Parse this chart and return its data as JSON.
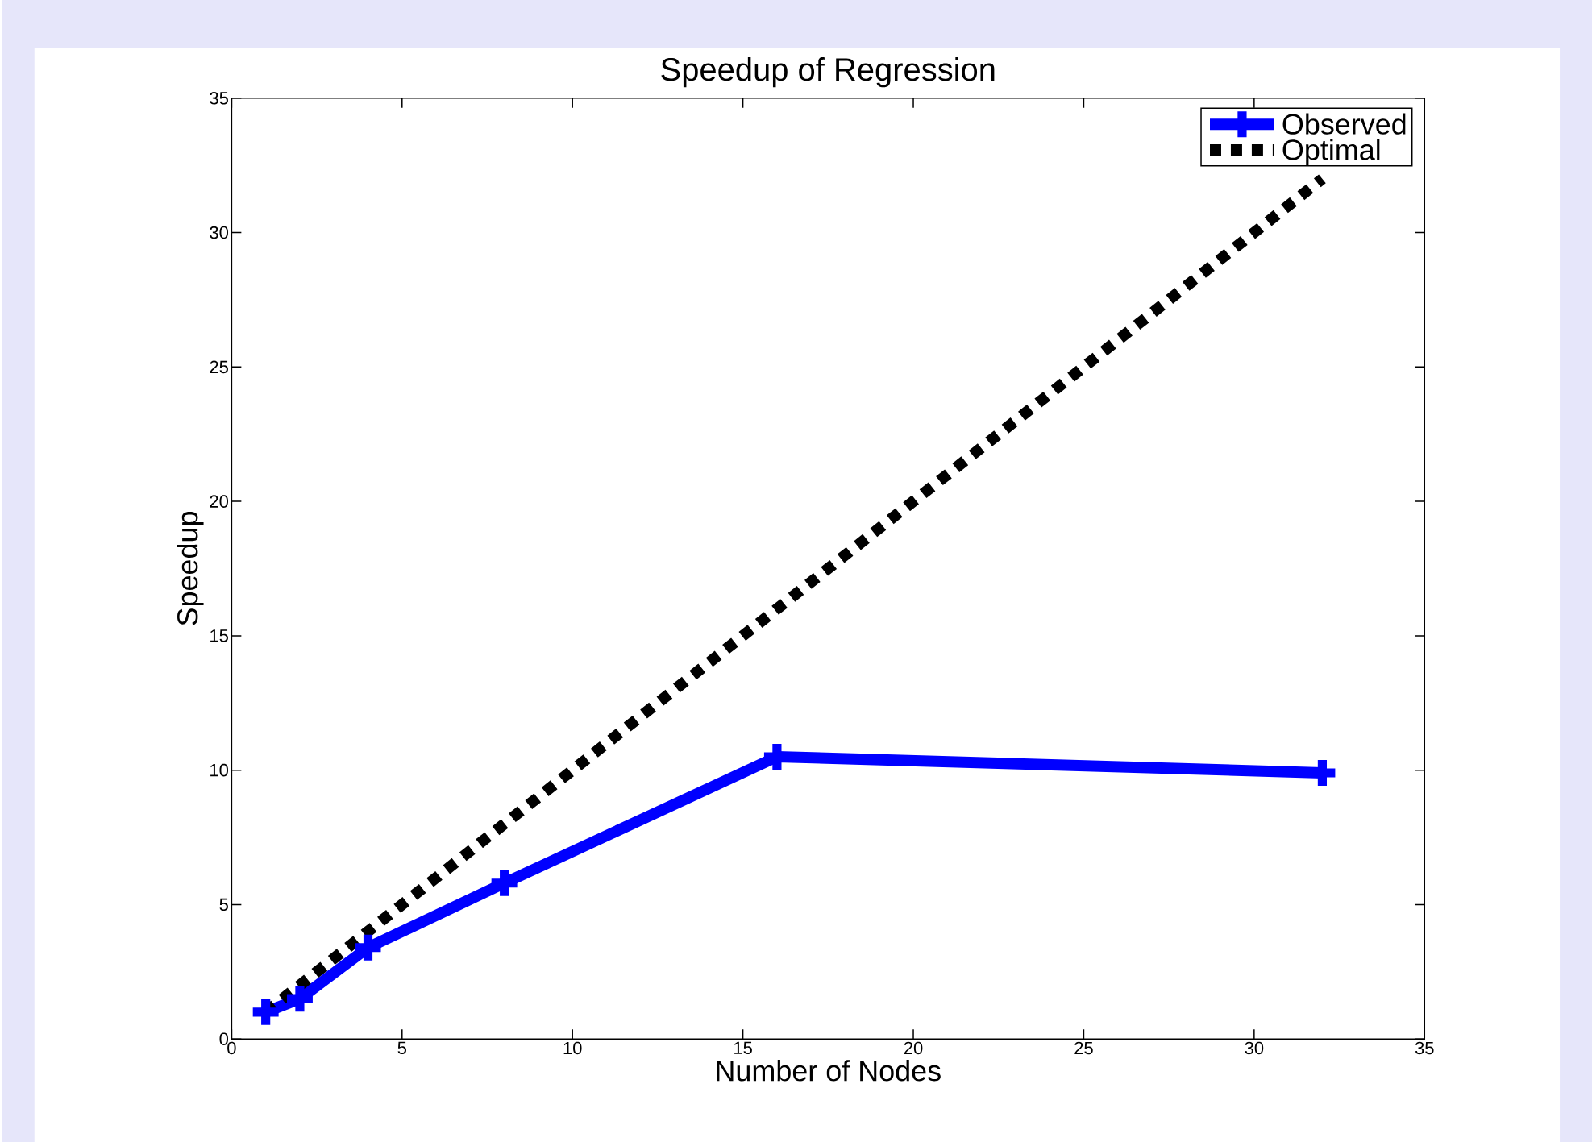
{
  "chart_data": {
    "type": "line",
    "title": "Speedup of Regression",
    "xlabel": "Number of Nodes",
    "ylabel": "Speedup",
    "x": [
      1,
      2,
      4,
      8,
      16,
      32
    ],
    "series": [
      {
        "name": "Observed",
        "color": "#0000ff",
        "values": [
          1.0,
          1.5,
          3.4,
          5.8,
          10.5,
          9.9
        ],
        "marker": "cross",
        "line_style": "solid"
      },
      {
        "name": "Optimal",
        "color": "#000000",
        "x": [
          1,
          32
        ],
        "values": [
          1,
          32
        ],
        "marker": "none",
        "line_style": "dotted"
      }
    ],
    "xlim": [
      0,
      35
    ],
    "ylim": [
      0,
      35
    ],
    "xticks": [
      0,
      5,
      10,
      15,
      20,
      25,
      30,
      35
    ],
    "yticks": [
      0,
      5,
      10,
      15,
      20,
      25,
      30,
      35
    ],
    "grid": false,
    "legend": "top right"
  }
}
